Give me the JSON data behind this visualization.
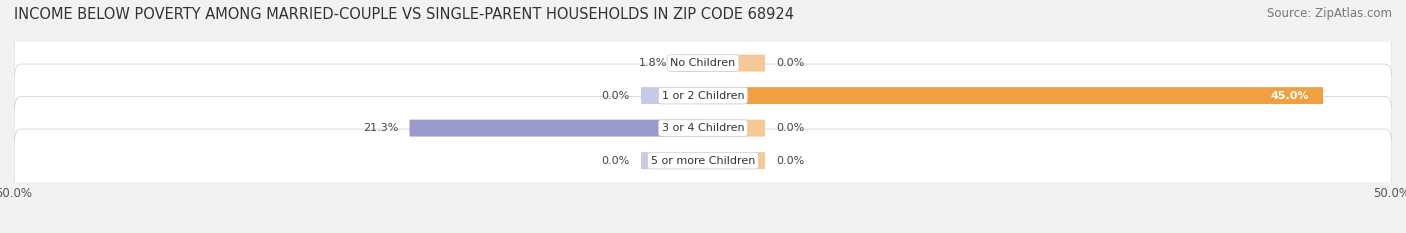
{
  "title": "INCOME BELOW POVERTY AMONG MARRIED-COUPLE VS SINGLE-PARENT HOUSEHOLDS IN ZIP CODE 68924",
  "source": "Source: ZipAtlas.com",
  "categories": [
    "No Children",
    "1 or 2 Children",
    "3 or 4 Children",
    "5 or more Children"
  ],
  "married_values": [
    1.8,
    0.0,
    21.3,
    0.0
  ],
  "single_values": [
    0.0,
    45.0,
    0.0,
    0.0
  ],
  "married_color": "#9999cc",
  "married_color_light": "#c8c8e8",
  "single_color": "#f0a040",
  "single_color_light": "#f5c896",
  "bar_height": 0.52,
  "xlim": 50.0,
  "bg_color": "#f2f2f2",
  "row_bg_color": "#e8e8e8",
  "title_fontsize": 10.5,
  "source_fontsize": 8.5,
  "label_fontsize": 8,
  "tick_fontsize": 8.5,
  "category_fontsize": 8,
  "zero_bar_width": 4.5,
  "x_ticks": [
    -50.0,
    50.0
  ],
  "x_tick_labels": [
    "50.0%",
    "50.0%"
  ]
}
